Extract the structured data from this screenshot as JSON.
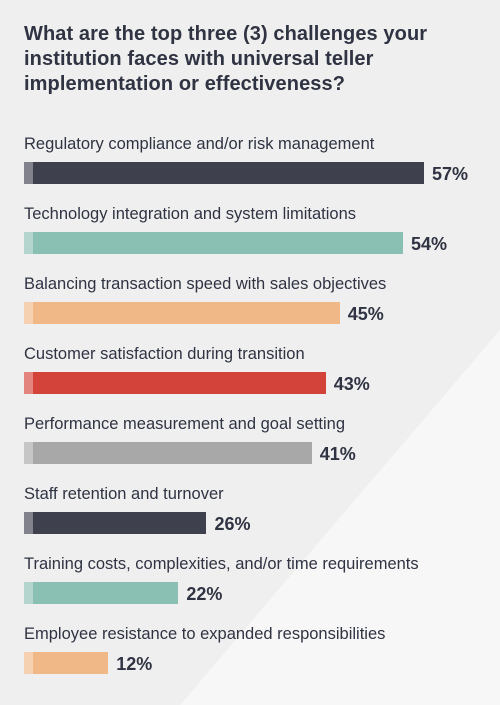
{
  "title": "What are the top three (3) challenges your institution faces with universal teller implementation or effectiveness?",
  "colors": {
    "dark": "#3e404d",
    "teal": "#8abfb4",
    "peach": "#f0b787",
    "red": "#d4433a",
    "gray": "#a8a8a8"
  },
  "chart_data": {
    "type": "bar",
    "orientation": "horizontal",
    "title": "What are the top three (3) challenges your institution faces with universal teller implementation or effectiveness?",
    "unit": "%",
    "xlim": [
      0,
      100
    ],
    "categories": [
      "Regulatory compliance and/or risk management",
      "Technology integration and system limitations",
      "Balancing transaction speed with sales objectives",
      "Customer satisfaction during transition",
      "Performance measurement and goal setting",
      "Staff retention and turnover",
      "Training costs, complexities, and/or time requirements",
      "Employee resistance to expanded responsibilities"
    ],
    "values": [
      57,
      54,
      45,
      43,
      41,
      26,
      22,
      12
    ],
    "value_labels": [
      "57%",
      "54%",
      "45%",
      "43%",
      "41%",
      "26%",
      "22%",
      "12%"
    ],
    "bar_colors": [
      "#3e404d",
      "#8abfb4",
      "#f0b787",
      "#d4433a",
      "#a8a8a8",
      "#3e404d",
      "#8abfb4",
      "#f0b787"
    ]
  }
}
